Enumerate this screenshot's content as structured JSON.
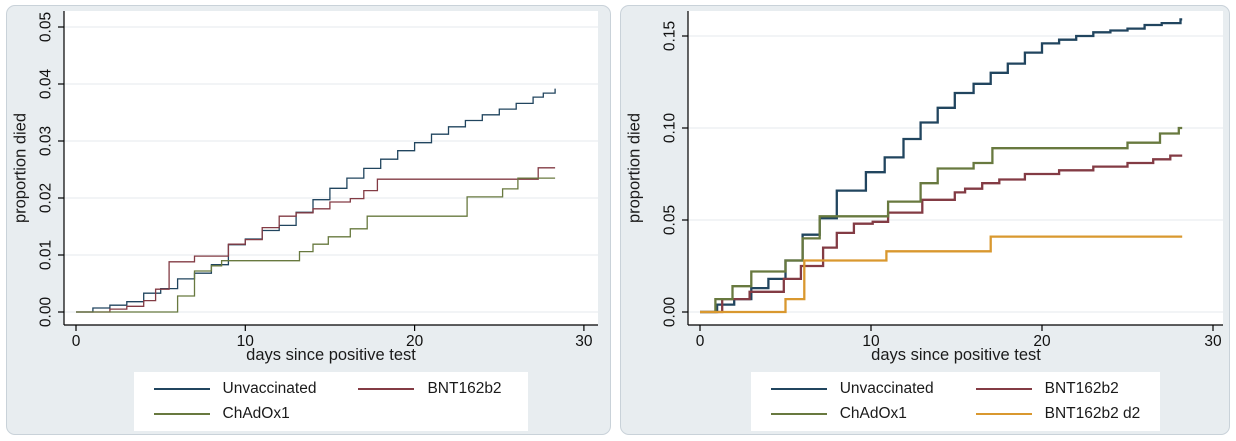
{
  "figure": {
    "background": "#ffffff",
    "panel_background": "#e8edf0",
    "panel_border": "#c9d2d9",
    "gridline_color": "#e9eef1",
    "axis_color": "#000000",
    "text_color": "#1a1a1a"
  },
  "chart_data": [
    {
      "type": "line",
      "step": true,
      "title": "",
      "xlabel": "days since positive test",
      "ylabel": "proportion died",
      "xlim": [
        0,
        30
      ],
      "ylim": [
        0,
        0.053
      ],
      "grid": true,
      "legend_position": "bottom",
      "line_width": 1.3,
      "x_end": 28.3,
      "x_ticks": [
        {
          "value": 0,
          "label": "0"
        },
        {
          "value": 10,
          "label": "10"
        },
        {
          "value": 20,
          "label": "20"
        },
        {
          "value": 30,
          "label": "30"
        }
      ],
      "y_ticks": [
        {
          "value": 0.0,
          "label": "0.00"
        },
        {
          "value": 0.01,
          "label": "0.01"
        },
        {
          "value": 0.02,
          "label": "0.02"
        },
        {
          "value": 0.03,
          "label": "0.03"
        },
        {
          "value": 0.04,
          "label": "0.04"
        },
        {
          "value": 0.05,
          "label": "0.05"
        }
      ],
      "series": [
        {
          "name": "Unvaccinated",
          "color": "#21455f",
          "points": [
            [
              0,
              0
            ],
            [
              1,
              0.0007
            ],
            [
              2,
              0.0012
            ],
            [
              3,
              0.0018
            ],
            [
              4,
              0.0033
            ],
            [
              5,
              0.0041
            ],
            [
              6,
              0.0058
            ],
            [
              7,
              0.0068
            ],
            [
              8,
              0.0083
            ],
            [
              9,
              0.0118
            ],
            [
              10,
              0.0128
            ],
            [
              11,
              0.0143
            ],
            [
              12,
              0.0152
            ],
            [
              13,
              0.0175
            ],
            [
              14,
              0.0197
            ],
            [
              15,
              0.0217
            ],
            [
              16,
              0.0235
            ],
            [
              17,
              0.0252
            ],
            [
              18,
              0.0268
            ],
            [
              19,
              0.0283
            ],
            [
              20,
              0.0297
            ],
            [
              21,
              0.0312
            ],
            [
              22,
              0.0325
            ],
            [
              23,
              0.0336
            ],
            [
              24,
              0.0346
            ],
            [
              25,
              0.0356
            ],
            [
              26,
              0.0366
            ],
            [
              27,
              0.0377
            ],
            [
              27.6,
              0.0384
            ],
            [
              28.3,
              0.0392
            ]
          ]
        },
        {
          "name": "BNT162b2",
          "color": "#833b44",
          "points": [
            [
              0,
              0
            ],
            [
              2,
              0.0005
            ],
            [
              3,
              0.001
            ],
            [
              4,
              0.002
            ],
            [
              4.7,
              0.004
            ],
            [
              5.5,
              0.0088
            ],
            [
              7,
              0.0098
            ],
            [
              9,
              0.0119
            ],
            [
              10,
              0.0127
            ],
            [
              11,
              0.0148
            ],
            [
              12,
              0.0168
            ],
            [
              13,
              0.0174
            ],
            [
              14,
              0.0181
            ],
            [
              15,
              0.0193
            ],
            [
              16.2,
              0.0199
            ],
            [
              17,
              0.0213
            ],
            [
              17.8,
              0.0233
            ],
            [
              27.3,
              0.0253
            ]
          ]
        },
        {
          "name": "ChAdOx1",
          "color": "#68793f",
          "points": [
            [
              0,
              0
            ],
            [
              6,
              0.0028
            ],
            [
              7,
              0.0072
            ],
            [
              8,
              0.0081
            ],
            [
              8.6,
              0.009
            ],
            [
              13.2,
              0.0106
            ],
            [
              14,
              0.0119
            ],
            [
              14.9,
              0.0132
            ],
            [
              16.2,
              0.0146
            ],
            [
              17.2,
              0.0168
            ],
            [
              23.1,
              0.0202
            ],
            [
              25.2,
              0.0216
            ],
            [
              26.1,
              0.0235
            ]
          ]
        }
      ]
    },
    {
      "type": "line",
      "step": true,
      "title": "",
      "xlabel": "days since positive test",
      "ylabel": "proportion died",
      "xlim": [
        0,
        30
      ],
      "ylim": [
        0,
        0.163
      ],
      "grid": true,
      "legend_position": "bottom",
      "line_width": 2.3,
      "x_end": 28.2,
      "x_ticks": [
        {
          "value": 0,
          "label": "0"
        },
        {
          "value": 10,
          "label": "10"
        },
        {
          "value": 20,
          "label": "20"
        },
        {
          "value": 30,
          "label": "30"
        }
      ],
      "y_ticks": [
        {
          "value": 0.0,
          "label": "0.00"
        },
        {
          "value": 0.05,
          "label": "0.05"
        },
        {
          "value": 0.1,
          "label": "0.10"
        },
        {
          "value": 0.15,
          "label": "0.15"
        }
      ],
      "series": [
        {
          "name": "Unvaccinated",
          "color": "#21455f",
          "points": [
            [
              0,
              0
            ],
            [
              1,
              0.004
            ],
            [
              2,
              0.007
            ],
            [
              3,
              0.013
            ],
            [
              4,
              0.018
            ],
            [
              5,
              0.028
            ],
            [
              6,
              0.042
            ],
            [
              7,
              0.051
            ],
            [
              8,
              0.066
            ],
            [
              9.7,
              0.076
            ],
            [
              10.8,
              0.084
            ],
            [
              11.9,
              0.094
            ],
            [
              12.9,
              0.103
            ],
            [
              13.9,
              0.111
            ],
            [
              14.9,
              0.119
            ],
            [
              16,
              0.124
            ],
            [
              17,
              0.13
            ],
            [
              18,
              0.135
            ],
            [
              19,
              0.141
            ],
            [
              20,
              0.146
            ],
            [
              21,
              0.148
            ],
            [
              22,
              0.15
            ],
            [
              23,
              0.152
            ],
            [
              24,
              0.153
            ],
            [
              25,
              0.154
            ],
            [
              26,
              0.156
            ],
            [
              27,
              0.157
            ],
            [
              28.1,
              0.159
            ]
          ]
        },
        {
          "name": "BNT162b2",
          "color": "#833b44",
          "points": [
            [
              0,
              0
            ],
            [
              1.3,
              0.007
            ],
            [
              2.9,
              0.011
            ],
            [
              4.9,
              0.018
            ],
            [
              5.9,
              0.025
            ],
            [
              7.2,
              0.035
            ],
            [
              8,
              0.043
            ],
            [
              9,
              0.048
            ],
            [
              10.1,
              0.049
            ],
            [
              11,
              0.054
            ],
            [
              13,
              0.061
            ],
            [
              14.9,
              0.065
            ],
            [
              15.5,
              0.067
            ],
            [
              16.5,
              0.07
            ],
            [
              17.5,
              0.072
            ],
            [
              19,
              0.075
            ],
            [
              21,
              0.077
            ],
            [
              23,
              0.079
            ],
            [
              25,
              0.081
            ],
            [
              26.5,
              0.083
            ],
            [
              27.5,
              0.085
            ]
          ]
        },
        {
          "name": "ChAdOx1",
          "color": "#68793f",
          "points": [
            [
              0,
              0
            ],
            [
              0.9,
              0.007
            ],
            [
              1.9,
              0.014
            ],
            [
              3,
              0.022
            ],
            [
              5,
              0.028
            ],
            [
              6,
              0.04
            ],
            [
              7,
              0.052
            ],
            [
              11,
              0.06
            ],
            [
              12.9,
              0.07
            ],
            [
              13.9,
              0.078
            ],
            [
              16,
              0.081
            ],
            [
              17.1,
              0.089
            ],
            [
              25,
              0.092
            ],
            [
              26.9,
              0.097
            ],
            [
              28,
              0.1
            ]
          ]
        },
        {
          "name": "BNT162b2 d2",
          "color": "#d9982f",
          "points": [
            [
              0,
              0
            ],
            [
              5,
              0.007
            ],
            [
              6.1,
              0.028
            ],
            [
              10.9,
              0.033
            ],
            [
              17,
              0.041
            ]
          ]
        }
      ]
    }
  ]
}
